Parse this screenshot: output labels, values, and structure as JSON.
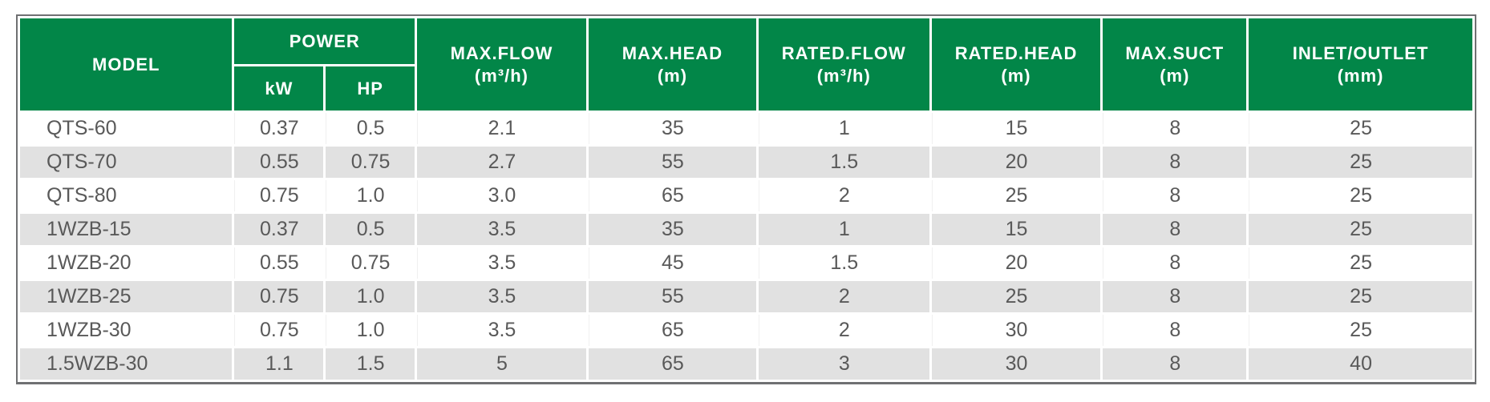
{
  "colors": {
    "header_green": "#028648",
    "stripe_gray": "#e1e1e1",
    "row_white": "#ffffff",
    "outer_border_gray": "#6f7072",
    "data_text_gray": "#595959",
    "header_text": "#ffffff"
  },
  "table": {
    "headers": {
      "model": {
        "label": "MODEL"
      },
      "power": {
        "label": "POWER",
        "sub": [
          {
            "label": "kW"
          },
          {
            "label": "HP"
          }
        ]
      },
      "max_flow": {
        "label": "MAX.FLOW",
        "unit": "(m³/h)"
      },
      "max_head": {
        "label": "MAX.HEAD",
        "unit": "(m)"
      },
      "rated_flow": {
        "label": "RATED.FLOW",
        "unit": "(m³/h)"
      },
      "rated_head": {
        "label": "RATED.HEAD",
        "unit": "(m)"
      },
      "max_suct": {
        "label": "MAX.SUCT",
        "unit": "(m)"
      },
      "inlet_outlet": {
        "label": "INLET/OUTLET",
        "unit": "(mm)"
      }
    }
  },
  "chart_data": {
    "type": "table",
    "title": "",
    "columns": [
      "MODEL",
      "POWER kW",
      "POWER HP",
      "MAX.FLOW (m³/h)",
      "MAX.HEAD (m)",
      "RATED.FLOW (m³/h)",
      "RATED.HEAD (m)",
      "MAX.SUCT (m)",
      "INLET/OUTLET (mm)"
    ],
    "rows": [
      [
        "QTS-60",
        "0.37",
        "0.5",
        "2.1",
        "35",
        "1",
        "15",
        "8",
        "25"
      ],
      [
        "QTS-70",
        "0.55",
        "0.75",
        "2.7",
        "55",
        "1.5",
        "20",
        "8",
        "25"
      ],
      [
        "QTS-80",
        "0.75",
        "1.0",
        "3.0",
        "65",
        "2",
        "25",
        "8",
        "25"
      ],
      [
        "1WZB-15",
        "0.37",
        "0.5",
        "3.5",
        "35",
        "1",
        "15",
        "8",
        "25"
      ],
      [
        "1WZB-20",
        "0.55",
        "0.75",
        "3.5",
        "45",
        "1.5",
        "20",
        "8",
        "25"
      ],
      [
        "1WZB-25",
        "0.75",
        "1.0",
        "3.5",
        "55",
        "2",
        "25",
        "8",
        "25"
      ],
      [
        "1WZB-30",
        "0.75",
        "1.0",
        "3.5",
        "65",
        "2",
        "30",
        "8",
        "25"
      ],
      [
        "1.5WZB-30",
        "1.1",
        "1.5",
        "5",
        "65",
        "3",
        "30",
        "8",
        "40"
      ]
    ]
  }
}
